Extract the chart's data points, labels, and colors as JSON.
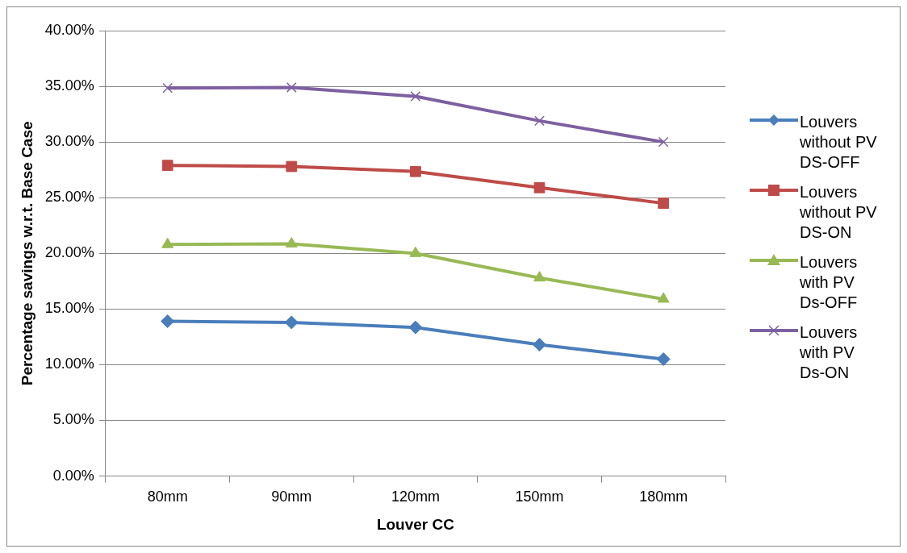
{
  "chart_data": {
    "type": "line",
    "xlabel": "Louver CC",
    "ylabel": "Percentage savings w.r.t. Base Case",
    "categories": [
      "80mm",
      "90mm",
      "120mm",
      "150mm",
      "180mm"
    ],
    "series": [
      {
        "name": "Louvers without PV DS-OFF",
        "color": "#4a7ebb",
        "marker": "diamond",
        "values": [
          13.9,
          13.8,
          13.35,
          11.8,
          10.5
        ]
      },
      {
        "name": "Louvers without PV DS-ON",
        "color": "#be4b48",
        "marker": "square",
        "values": [
          27.9,
          27.8,
          27.35,
          25.9,
          24.5
        ]
      },
      {
        "name": "Louvers with PV Ds-OFF",
        "color": "#98b954",
        "marker": "triangle",
        "values": [
          20.8,
          20.85,
          20.0,
          17.8,
          15.9
        ]
      },
      {
        "name": "Louvers with PV Ds-ON",
        "color": "#7d60a0",
        "marker": "cross",
        "values": [
          34.85,
          34.9,
          34.1,
          31.9,
          30.0
        ]
      }
    ],
    "ylim": [
      0,
      40
    ],
    "yticks": [
      {
        "value": 0,
        "label": "0.00%"
      },
      {
        "value": 5,
        "label": "5.00%"
      },
      {
        "value": 10,
        "label": "10.00%"
      },
      {
        "value": 15,
        "label": "15.00%"
      },
      {
        "value": 20,
        "label": "20.00%"
      },
      {
        "value": 25,
        "label": "25.00%"
      },
      {
        "value": 30,
        "label": "30.00%"
      },
      {
        "value": 35,
        "label": "35.00%"
      },
      {
        "value": 40,
        "label": "40.00%"
      }
    ],
    "grid": "y",
    "legend": "right"
  }
}
